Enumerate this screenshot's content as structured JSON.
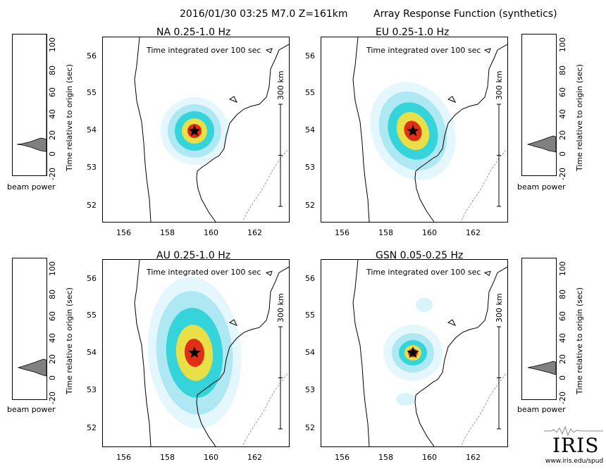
{
  "header": {
    "event": "2016/01/30 03:25  M7.0  Z=161km",
    "title": "Array Response Function (synthetics)"
  },
  "panels": [
    {
      "id": "na",
      "title": "NA  0.25-1.0 Hz",
      "note": "Time integrated over 100 sec"
    },
    {
      "id": "eu",
      "title": "EU  0.25-1.0 Hz",
      "note": "Time integrated over 100 sec"
    },
    {
      "id": "au",
      "title": "AU  0.25-1.0 Hz",
      "note": "Time integrated over 100 sec"
    },
    {
      "id": "gsn",
      "title": "GSN  0.05-0.25 Hz",
      "note": "Time integrated over 100 sec"
    }
  ],
  "map_axes": {
    "lon_ticks": [
      "156",
      "158",
      "160",
      "162"
    ],
    "lat_ticks": [
      "56",
      "55",
      "54",
      "53",
      "52"
    ],
    "scale_label": "300 km"
  },
  "beam_plot": {
    "ylabel": "Time relative to origin (sec)",
    "ticks": [
      "100",
      "80",
      "60",
      "40",
      "20",
      "0",
      "-20"
    ],
    "xlabel": "beam power"
  },
  "logo": {
    "name": "IRIS",
    "url": "www.iris.edu/spud"
  },
  "colors": {
    "beam_fill": "#808080",
    "heat_outer": "#d8f4fb",
    "heat_mid": "#2ad0d8",
    "heat_inner": "#e01e12",
    "coast": "#000000"
  }
}
